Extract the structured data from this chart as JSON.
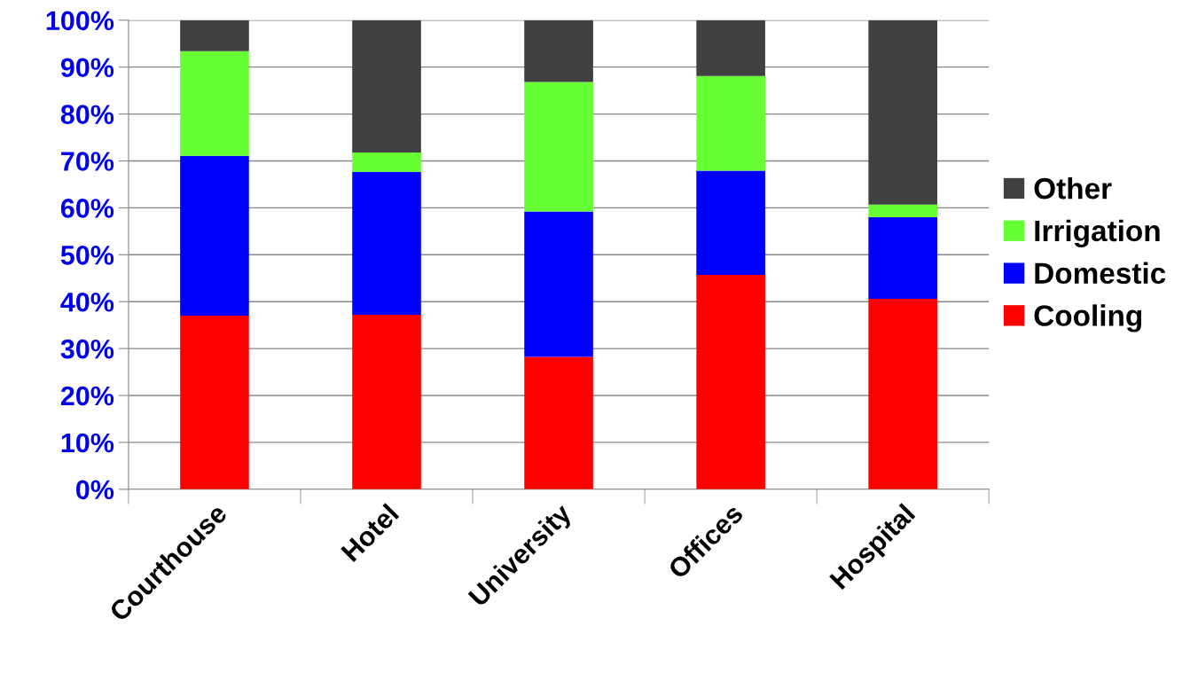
{
  "chart_data": {
    "type": "bar",
    "stacked": true,
    "categories": [
      "Courthouse",
      "Hotel",
      "University",
      "Offices",
      "Hospital"
    ],
    "series": [
      {
        "name": "Cooling",
        "color": "#ff0000",
        "values": [
          37.0,
          37.2,
          28.2,
          45.7,
          40.6
        ]
      },
      {
        "name": "Domestic",
        "color": "#0000ff",
        "values": [
          34.1,
          30.5,
          31.0,
          22.2,
          17.4
        ]
      },
      {
        "name": "Irrigation",
        "color": "#66ff33",
        "values": [
          22.3,
          4.1,
          27.6,
          20.2,
          2.7
        ]
      },
      {
        "name": "Other",
        "color": "#404040",
        "values": [
          6.6,
          28.2,
          13.2,
          11.9,
          39.3
        ]
      }
    ],
    "ylim": [
      0,
      100
    ],
    "yticks": [
      {
        "value": 0,
        "label": "0%"
      },
      {
        "value": 10,
        "label": "10%"
      },
      {
        "value": 20,
        "label": "20%"
      },
      {
        "value": 30,
        "label": "30%"
      },
      {
        "value": 40,
        "label": "40%"
      },
      {
        "value": 50,
        "label": "50%"
      },
      {
        "value": 60,
        "label": "60%"
      },
      {
        "value": 70,
        "label": "70%"
      },
      {
        "value": 80,
        "label": "80%"
      },
      {
        "value": 90,
        "label": "90%"
      },
      {
        "value": 100,
        "label": "100%"
      }
    ],
    "grid": "y",
    "legend": "right"
  }
}
